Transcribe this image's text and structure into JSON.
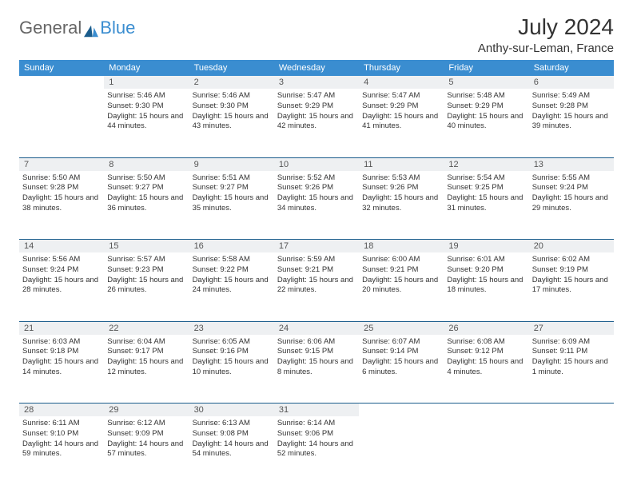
{
  "logo": {
    "text_general": "General",
    "text_blue": "Blue"
  },
  "title": "July 2024",
  "location": "Anthy-sur-Leman, France",
  "colors": {
    "header_bg": "#3a8dd0",
    "daynum_bg": "#eef0f2",
    "week_border": "#1a5c8c",
    "text": "#333333"
  },
  "day_headers": [
    "Sunday",
    "Monday",
    "Tuesday",
    "Wednesday",
    "Thursday",
    "Friday",
    "Saturday"
  ],
  "weeks": [
    {
      "nums": [
        "",
        "1",
        "2",
        "3",
        "4",
        "5",
        "6"
      ],
      "cells": [
        "",
        "Sunrise: 5:46 AM\nSunset: 9:30 PM\nDaylight: 15 hours and 44 minutes.",
        "Sunrise: 5:46 AM\nSunset: 9:30 PM\nDaylight: 15 hours and 43 minutes.",
        "Sunrise: 5:47 AM\nSunset: 9:29 PM\nDaylight: 15 hours and 42 minutes.",
        "Sunrise: 5:47 AM\nSunset: 9:29 PM\nDaylight: 15 hours and 41 minutes.",
        "Sunrise: 5:48 AM\nSunset: 9:29 PM\nDaylight: 15 hours and 40 minutes.",
        "Sunrise: 5:49 AM\nSunset: 9:28 PM\nDaylight: 15 hours and 39 minutes."
      ]
    },
    {
      "nums": [
        "7",
        "8",
        "9",
        "10",
        "11",
        "12",
        "13"
      ],
      "cells": [
        "Sunrise: 5:50 AM\nSunset: 9:28 PM\nDaylight: 15 hours and 38 minutes.",
        "Sunrise: 5:50 AM\nSunset: 9:27 PM\nDaylight: 15 hours and 36 minutes.",
        "Sunrise: 5:51 AM\nSunset: 9:27 PM\nDaylight: 15 hours and 35 minutes.",
        "Sunrise: 5:52 AM\nSunset: 9:26 PM\nDaylight: 15 hours and 34 minutes.",
        "Sunrise: 5:53 AM\nSunset: 9:26 PM\nDaylight: 15 hours and 32 minutes.",
        "Sunrise: 5:54 AM\nSunset: 9:25 PM\nDaylight: 15 hours and 31 minutes.",
        "Sunrise: 5:55 AM\nSunset: 9:24 PM\nDaylight: 15 hours and 29 minutes."
      ]
    },
    {
      "nums": [
        "14",
        "15",
        "16",
        "17",
        "18",
        "19",
        "20"
      ],
      "cells": [
        "Sunrise: 5:56 AM\nSunset: 9:24 PM\nDaylight: 15 hours and 28 minutes.",
        "Sunrise: 5:57 AM\nSunset: 9:23 PM\nDaylight: 15 hours and 26 minutes.",
        "Sunrise: 5:58 AM\nSunset: 9:22 PM\nDaylight: 15 hours and 24 minutes.",
        "Sunrise: 5:59 AM\nSunset: 9:21 PM\nDaylight: 15 hours and 22 minutes.",
        "Sunrise: 6:00 AM\nSunset: 9:21 PM\nDaylight: 15 hours and 20 minutes.",
        "Sunrise: 6:01 AM\nSunset: 9:20 PM\nDaylight: 15 hours and 18 minutes.",
        "Sunrise: 6:02 AM\nSunset: 9:19 PM\nDaylight: 15 hours and 17 minutes."
      ]
    },
    {
      "nums": [
        "21",
        "22",
        "23",
        "24",
        "25",
        "26",
        "27"
      ],
      "cells": [
        "Sunrise: 6:03 AM\nSunset: 9:18 PM\nDaylight: 15 hours and 14 minutes.",
        "Sunrise: 6:04 AM\nSunset: 9:17 PM\nDaylight: 15 hours and 12 minutes.",
        "Sunrise: 6:05 AM\nSunset: 9:16 PM\nDaylight: 15 hours and 10 minutes.",
        "Sunrise: 6:06 AM\nSunset: 9:15 PM\nDaylight: 15 hours and 8 minutes.",
        "Sunrise: 6:07 AM\nSunset: 9:14 PM\nDaylight: 15 hours and 6 minutes.",
        "Sunrise: 6:08 AM\nSunset: 9:12 PM\nDaylight: 15 hours and 4 minutes.",
        "Sunrise: 6:09 AM\nSunset: 9:11 PM\nDaylight: 15 hours and 1 minute."
      ]
    },
    {
      "nums": [
        "28",
        "29",
        "30",
        "31",
        "",
        "",
        ""
      ],
      "cells": [
        "Sunrise: 6:11 AM\nSunset: 9:10 PM\nDaylight: 14 hours and 59 minutes.",
        "Sunrise: 6:12 AM\nSunset: 9:09 PM\nDaylight: 14 hours and 57 minutes.",
        "Sunrise: 6:13 AM\nSunset: 9:08 PM\nDaylight: 14 hours and 54 minutes.",
        "Sunrise: 6:14 AM\nSunset: 9:06 PM\nDaylight: 14 hours and 52 minutes.",
        "",
        "",
        ""
      ]
    }
  ]
}
